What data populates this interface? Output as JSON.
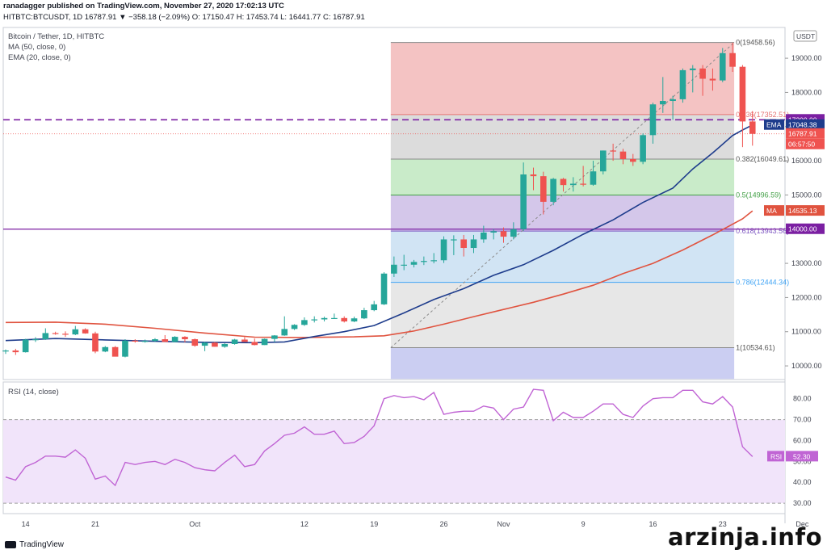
{
  "header": {
    "publish_line": "ranadagger published on TradingView.com, November 27, 2020 17:02:13 UTC",
    "ticker_line": "HITBTC:BTCUSDT, 1D  16787.91  ▼ −358.18 (−2.09%)  O: 17150.47  H: 17453.74  L: 16441.77  C: 16787.91"
  },
  "legend": {
    "title": "Bitcoin / Tether, 1D, HITBTC",
    "ma": "MA (50, close, 0)",
    "ema": "EMA (20, close, 0)",
    "rsi": "RSI (14, close)"
  },
  "currency_badge": "USDT",
  "footer": {
    "logo_text": "TradingView",
    "watermark": "arzinja.info"
  },
  "colors": {
    "up": "#26a69a",
    "down": "#ef5350",
    "ema": "#1e3c8c",
    "ma": "#e0533f",
    "rsi": "#c064d4",
    "level_line": "#9b27b0",
    "hline": "#7b1fa2"
  },
  "chart_data": [
    {
      "type": "candlestick",
      "symbol": "HITBTC:BTCUSDT",
      "timeframe": "1D",
      "ylim": [
        9600,
        19900
      ],
      "y_ticks": [
        "10000.00",
        "11000.00",
        "12000.00",
        "13000.00",
        "14000.00",
        "15000.00",
        "16000.00",
        "17000.00",
        "18000.00",
        "19000.00"
      ],
      "x_ticks": [
        {
          "label": "14",
          "index": 2
        },
        {
          "label": "21",
          "index": 9
        },
        {
          "label": "Oct",
          "index": 19
        },
        {
          "label": "12",
          "index": 30
        },
        {
          "label": "19",
          "index": 37
        },
        {
          "label": "26",
          "index": 44
        },
        {
          "label": "Nov",
          "index": 50
        },
        {
          "label": "9",
          "index": 58
        },
        {
          "label": "16",
          "index": 65
        },
        {
          "label": "23",
          "index": 72
        },
        {
          "label": "Dec",
          "index": 80
        }
      ],
      "candles": [
        [
          10440,
          10480,
          10350,
          10450
        ],
        [
          10450,
          10500,
          10320,
          10400
        ],
        [
          10400,
          10790,
          10390,
          10770
        ],
        [
          10770,
          10840,
          10700,
          10780
        ],
        [
          10780,
          11100,
          10760,
          10960
        ],
        [
          10960,
          11000,
          10910,
          10940
        ],
        [
          10940,
          11010,
          10850,
          10920
        ],
        [
          10920,
          11170,
          10900,
          11070
        ],
        [
          11070,
          11100,
          10940,
          10950
        ],
        [
          10950,
          11000,
          10370,
          10420
        ],
        [
          10420,
          10580,
          10400,
          10550
        ],
        [
          10550,
          10580,
          10280,
          10270
        ],
        [
          10270,
          10780,
          10250,
          10740
        ],
        [
          10740,
          10780,
          10680,
          10710
        ],
        [
          10710,
          10770,
          10680,
          10730
        ],
        [
          10730,
          10810,
          10700,
          10780
        ],
        [
          10780,
          10900,
          10700,
          10700
        ],
        [
          10700,
          10870,
          10690,
          10850
        ],
        [
          10850,
          10870,
          10690,
          10780
        ],
        [
          10780,
          10800,
          10560,
          10590
        ],
        [
          10590,
          10700,
          10430,
          10680
        ],
        [
          10680,
          10700,
          10560,
          10560
        ],
        [
          10560,
          10660,
          10530,
          10640
        ],
        [
          10640,
          10790,
          10620,
          10770
        ],
        [
          10770,
          10840,
          10700,
          10700
        ],
        [
          10700,
          10800,
          10600,
          10610
        ],
        [
          10610,
          10800,
          10610,
          10790
        ],
        [
          10790,
          10900,
          10700,
          10890
        ],
        [
          10890,
          11450,
          10880,
          11080
        ],
        [
          11080,
          11220,
          11050,
          11200
        ],
        [
          11200,
          11420,
          11170,
          11340
        ],
        [
          11340,
          11450,
          11270,
          11360
        ],
        [
          11360,
          11440,
          11300,
          11400
        ],
        [
          11400,
          11530,
          11380,
          11400
        ],
        [
          11400,
          11450,
          11270,
          11300
        ],
        [
          11300,
          11440,
          11280,
          11390
        ],
        [
          11390,
          11700,
          11370,
          11630
        ],
        [
          11630,
          11900,
          11600,
          11800
        ],
        [
          11800,
          12740,
          11780,
          12700
        ],
        [
          12700,
          13200,
          12600,
          12960
        ],
        [
          12960,
          13250,
          12800,
          12960
        ],
        [
          12960,
          13100,
          12880,
          13040
        ],
        [
          13040,
          13200,
          12950,
          13070
        ],
        [
          13070,
          13300,
          13000,
          13090
        ],
        [
          13090,
          13790,
          13010,
          13700
        ],
        [
          13700,
          13820,
          13240,
          13700
        ],
        [
          13700,
          13830,
          13200,
          13450
        ],
        [
          13450,
          13830,
          13300,
          13700
        ],
        [
          13700,
          14100,
          13600,
          13900
        ],
        [
          13900,
          14000,
          13700,
          13940
        ],
        [
          13940,
          14050,
          13600,
          13780
        ],
        [
          13780,
          14200,
          13700,
          14000
        ],
        [
          14000,
          15950,
          13950,
          15600
        ],
        [
          15600,
          15800,
          15140,
          15550
        ],
        [
          15550,
          15680,
          14430,
          14800
        ],
        [
          14800,
          15500,
          14700,
          15470
        ],
        [
          15470,
          15500,
          15100,
          15290
        ],
        [
          15290,
          15520,
          15100,
          15330
        ],
        [
          15330,
          15850,
          15250,
          15300
        ],
        [
          15300,
          16000,
          15270,
          15690
        ],
        [
          15690,
          16300,
          15600,
          16300
        ],
        [
          16300,
          16500,
          16000,
          16270
        ],
        [
          16270,
          16350,
          15900,
          16050
        ],
        [
          16050,
          16200,
          15850,
          15970
        ],
        [
          15970,
          16800,
          15900,
          16750
        ],
        [
          16750,
          17700,
          16500,
          17650
        ],
        [
          17650,
          18450,
          17400,
          17750
        ],
        [
          17750,
          17900,
          17200,
          17800
        ],
        [
          17800,
          18700,
          17700,
          18650
        ],
        [
          18650,
          18800,
          18000,
          18700
        ],
        [
          18700,
          18800,
          17900,
          18400
        ],
        [
          18400,
          18700,
          18050,
          18350
        ],
        [
          18350,
          19300,
          18300,
          19150
        ],
        [
          19150,
          19458.56,
          18600,
          18750
        ],
        [
          18750,
          18800,
          16400,
          17150
        ],
        [
          17150,
          17453.74,
          16441.77,
          16787.91
        ]
      ],
      "fib_levels": [
        {
          "label": "0(19458.56)",
          "value": 19458.56
        },
        {
          "label": "0.236(17352.51)",
          "value": 17352.51
        },
        {
          "label": "0.382(16049.61)",
          "value": 16049.61
        },
        {
          "label": "0.5(14996.59)",
          "value": 14996.59
        },
        {
          "label": "0.618(13943.56)",
          "value": 13943.56
        },
        {
          "label": "0.786(12444.34)",
          "value": 12444.34
        },
        {
          "label": "1(10534.61)",
          "value": 10534.61
        }
      ],
      "fib_start_index": 39,
      "fib_end_index": 73,
      "horizontal_lines": [
        {
          "value": 17200,
          "label": "17200.00",
          "style": "dashed"
        },
        {
          "value": 14000,
          "label": "14000.00",
          "style": "solid"
        }
      ],
      "price_labels": [
        {
          "name": "EMA",
          "value": 17048.38,
          "label": "17048.38"
        },
        {
          "name": "close",
          "value": 16787.91,
          "label": "16787.91"
        },
        {
          "name": "countdown",
          "label": "06:57:50"
        },
        {
          "name": "MA",
          "value": 14535.13,
          "label": "14535.13"
        }
      ],
      "ema_20": [
        [
          0,
          10740
        ],
        [
          5,
          10800
        ],
        [
          10,
          10760
        ],
        [
          15,
          10720
        ],
        [
          20,
          10690
        ],
        [
          25,
          10680
        ],
        [
          28,
          10700
        ],
        [
          31,
          10860
        ],
        [
          34,
          11000
        ],
        [
          37,
          11180
        ],
        [
          40,
          11550
        ],
        [
          43,
          11940
        ],
        [
          46,
          12260
        ],
        [
          49,
          12650
        ],
        [
          52,
          12960
        ],
        [
          55,
          13380
        ],
        [
          58,
          13850
        ],
        [
          61,
          14270
        ],
        [
          64,
          14780
        ],
        [
          67,
          15200
        ],
        [
          69,
          15760
        ],
        [
          71,
          16230
        ],
        [
          73,
          16740
        ],
        [
          74,
          16900
        ],
        [
          75,
          17048.38
        ]
      ],
      "ma_50": [
        [
          0,
          11270
        ],
        [
          5,
          11280
        ],
        [
          10,
          11220
        ],
        [
          15,
          11100
        ],
        [
          20,
          10960
        ],
        [
          25,
          10840
        ],
        [
          30,
          10830
        ],
        [
          35,
          10850
        ],
        [
          38,
          10880
        ],
        [
          41,
          11020
        ],
        [
          44,
          11220
        ],
        [
          47,
          11440
        ],
        [
          50,
          11650
        ],
        [
          53,
          11860
        ],
        [
          56,
          12100
        ],
        [
          59,
          12360
        ],
        [
          62,
          12700
        ],
        [
          65,
          13000
        ],
        [
          68,
          13390
        ],
        [
          71,
          13830
        ],
        [
          74,
          14300
        ],
        [
          75,
          14535.13
        ]
      ]
    },
    {
      "type": "line",
      "name": "RSI (14, close)",
      "ylim": [
        25,
        88
      ],
      "y_ticks": [
        "30.00",
        "40.00",
        "50.00",
        "60.00",
        "70.00",
        "80.00"
      ],
      "band": [
        30,
        70
      ],
      "last_value_label": "52.30",
      "series_label": "RSI",
      "values": [
        42.5,
        41,
        47.5,
        49.5,
        52.5,
        52.5,
        52,
        55.5,
        51.5,
        41.5,
        43,
        38.5,
        49.5,
        48.5,
        49.5,
        50,
        48.5,
        51,
        49.5,
        47,
        46,
        45.5,
        49.5,
        53,
        47.5,
        48.5,
        55,
        58.5,
        62.5,
        63.5,
        66.5,
        63,
        63,
        64.5,
        58.5,
        59,
        62,
        67,
        80,
        81.5,
        80.5,
        81,
        79.5,
        83,
        72.5,
        73.5,
        74,
        74,
        76.5,
        75.5,
        70,
        75,
        76,
        84.5,
        84,
        69.5,
        73.5,
        71,
        71,
        74,
        77.5,
        77.5,
        72.5,
        71,
        76.5,
        80,
        80.5,
        80.5,
        84,
        84,
        78.5,
        77.5,
        81,
        76,
        57,
        52.3
      ]
    }
  ]
}
